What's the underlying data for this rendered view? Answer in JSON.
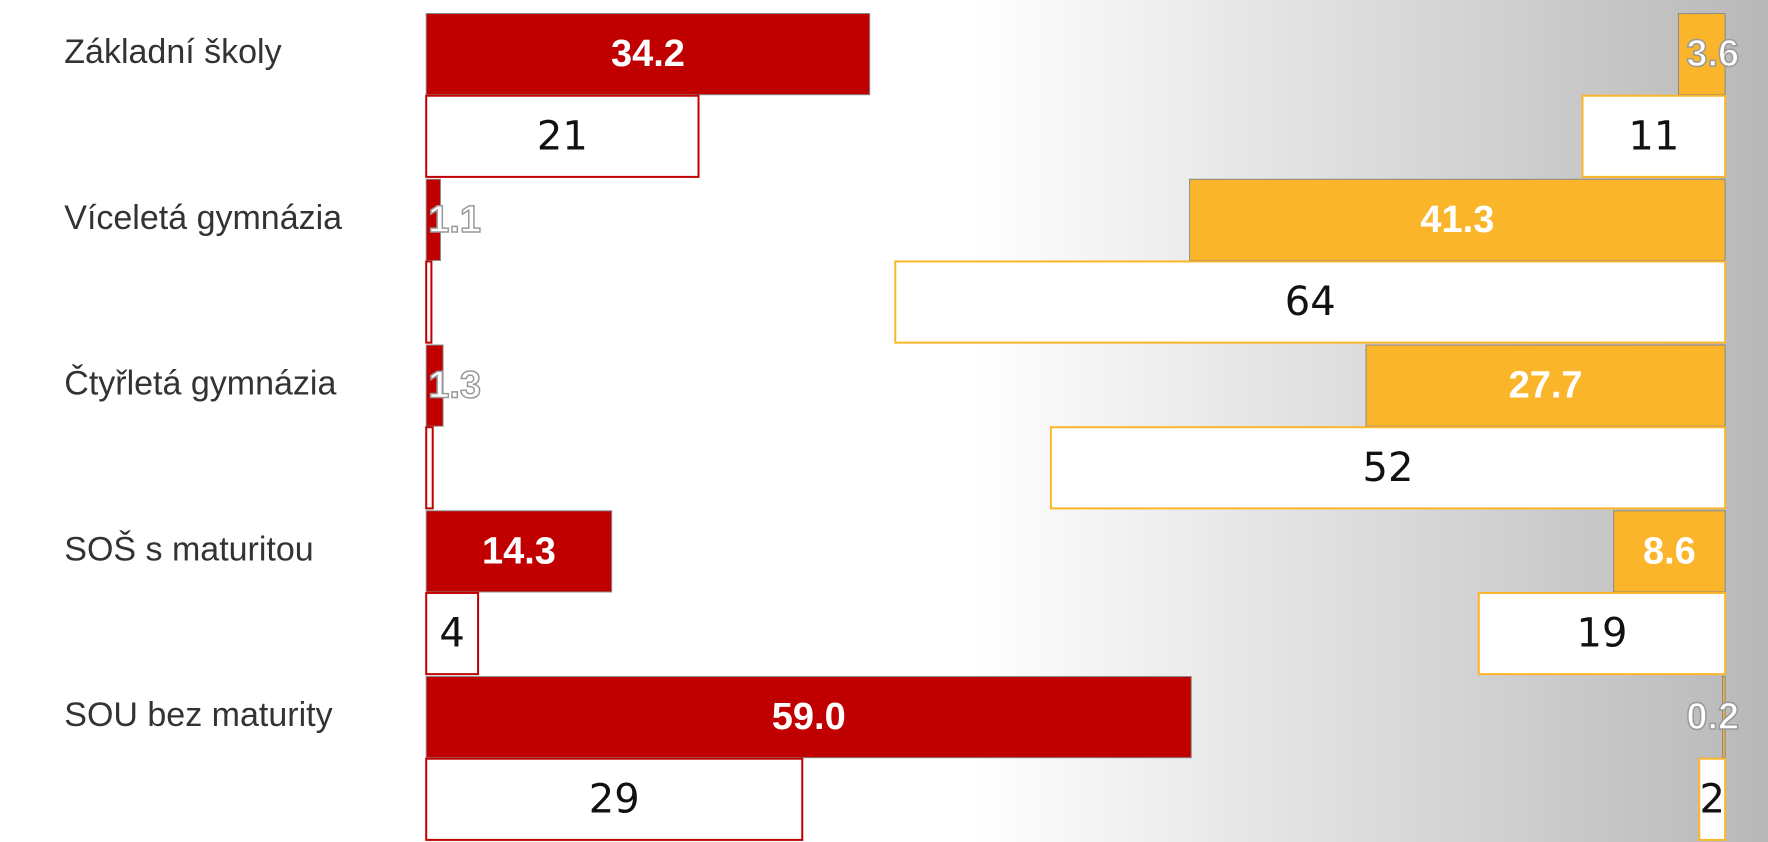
{
  "chart_data": {
    "type": "bar",
    "categories": [
      "Základní školy",
      "Víceletá gymnázia",
      "Čtyřletá gymnázia",
      "SOŠ s maturitou",
      "SOU bez maturity"
    ],
    "series": [
      {
        "color": "#c00000",
        "side": "left",
        "style": "filled",
        "values": [
          34.2,
          1.1,
          1.3,
          14.3,
          59.0
        ],
        "value_labels": [
          "34.2",
          "1.1",
          "1.3",
          "14.3",
          "59.0"
        ]
      },
      {
        "color": "#c00000",
        "side": "left",
        "style": "outline",
        "values": [
          21,
          0.4,
          0.5,
          4,
          29
        ],
        "value_labels": [
          "21",
          null,
          null,
          "4",
          "29"
        ]
      },
      {
        "color": "#fbb52b",
        "side": "right",
        "style": "filled",
        "values": [
          3.6,
          41.3,
          27.7,
          8.6,
          0.2
        ],
        "value_labels": [
          "3.6",
          "41.3",
          "27.7",
          "8.6",
          "0.2"
        ]
      },
      {
        "color": "#fbb52b",
        "side": "right",
        "style": "outline",
        "values": [
          11,
          64,
          52,
          19,
          2
        ],
        "value_labels": [
          "11",
          "64",
          "52",
          "19",
          "2"
        ]
      }
    ]
  }
}
